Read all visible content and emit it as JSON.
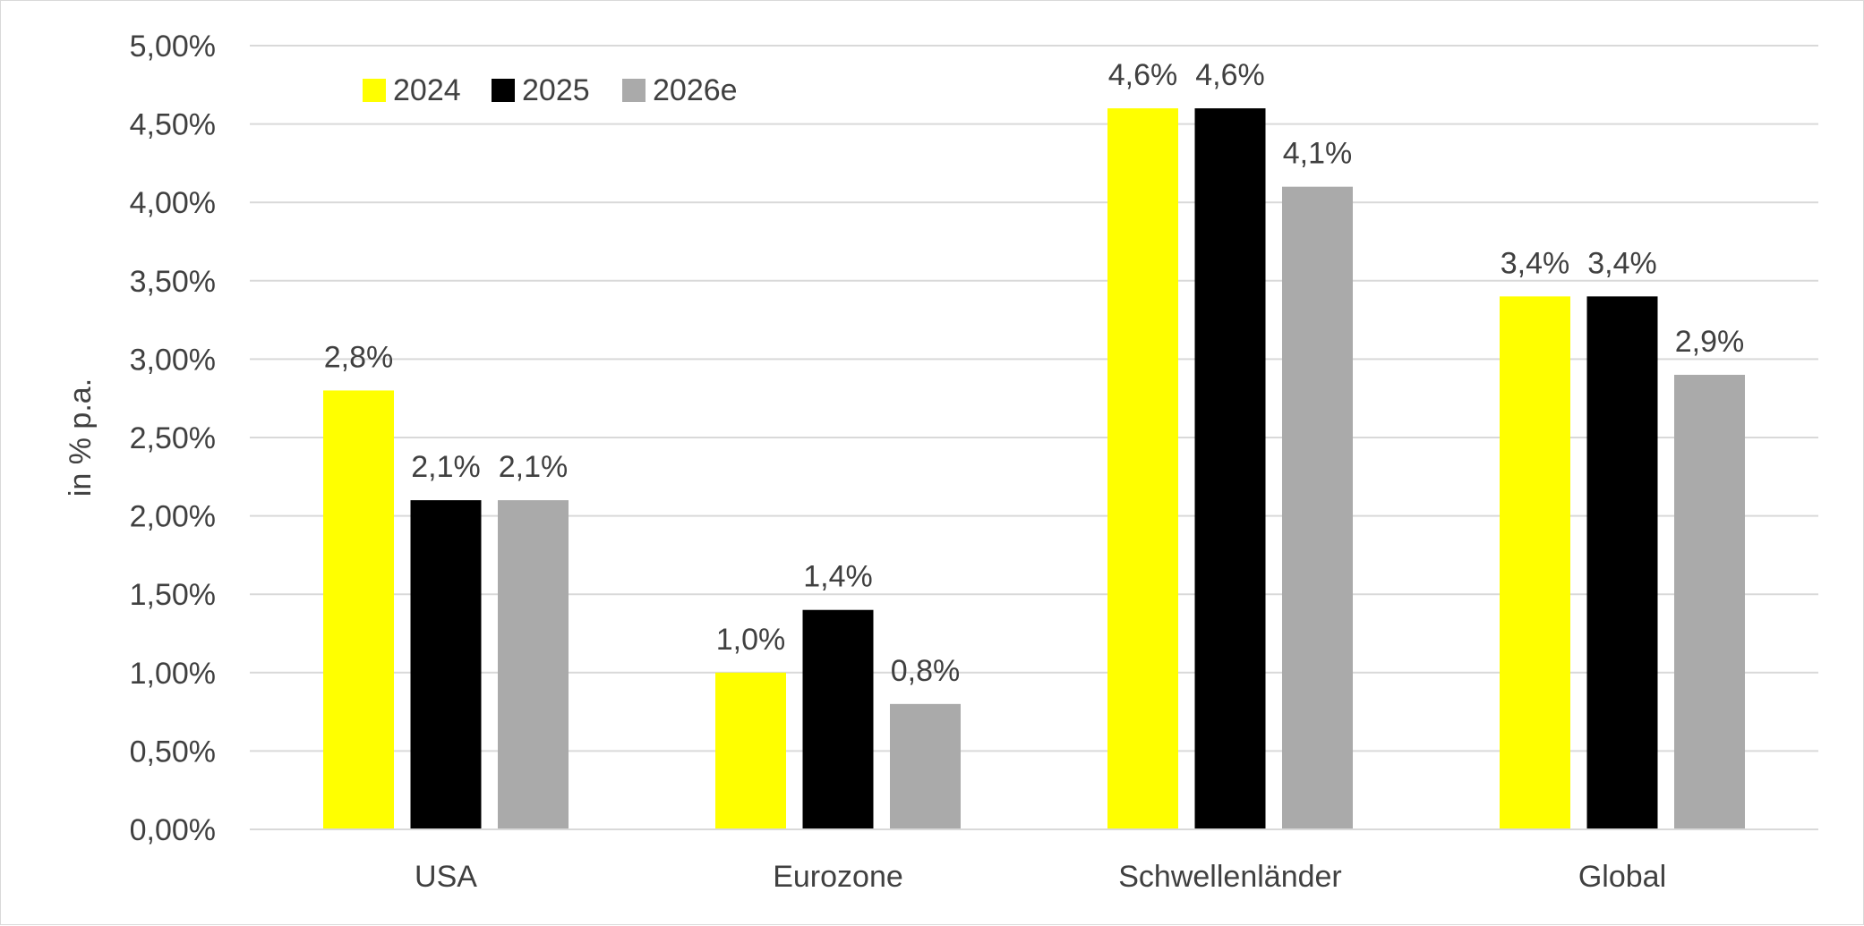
{
  "colors": {
    "series_2024": "#ffff00",
    "series_2025": "#000000",
    "series_2026e": "#aaaaaa",
    "gridline": "#d9d9d9",
    "text": "#404040"
  },
  "chart_data": {
    "type": "bar",
    "title": "",
    "xlabel": "",
    "ylabel": "in % p.a.",
    "ylim": [
      0,
      5
    ],
    "grid": true,
    "legend_position": "top-left",
    "yticks": [
      {
        "value": 0,
        "label": "0,00%"
      },
      {
        "value": 0.5,
        "label": "0,50%"
      },
      {
        "value": 1,
        "label": "1,00%"
      },
      {
        "value": 1.5,
        "label": "1,50%"
      },
      {
        "value": 2,
        "label": "2,00%"
      },
      {
        "value": 2.5,
        "label": "2,50%"
      },
      {
        "value": 3,
        "label": "3,00%"
      },
      {
        "value": 3.5,
        "label": "3,50%"
      },
      {
        "value": 4,
        "label": "4,00%"
      },
      {
        "value": 4.5,
        "label": "4,50%"
      },
      {
        "value": 5,
        "label": "5,00%"
      }
    ],
    "categories": [
      "USA",
      "Eurozone",
      "Schwellenländer",
      "Global"
    ],
    "series": [
      {
        "name": "2024",
        "values": [
          2.8,
          1.0,
          4.6,
          3.4
        ],
        "labels": [
          "2,8%",
          "1,0%",
          "4,6%",
          "3,4%"
        ]
      },
      {
        "name": "2025",
        "values": [
          2.1,
          1.4,
          4.6,
          3.4
        ],
        "labels": [
          "2,1%",
          "1,4%",
          "4,6%",
          "3,4%"
        ]
      },
      {
        "name": "2026e",
        "values": [
          2.1,
          0.8,
          4.1,
          2.9
        ],
        "labels": [
          "2,1%",
          "0,8%",
          "4,1%",
          "2,9%"
        ]
      }
    ]
  }
}
